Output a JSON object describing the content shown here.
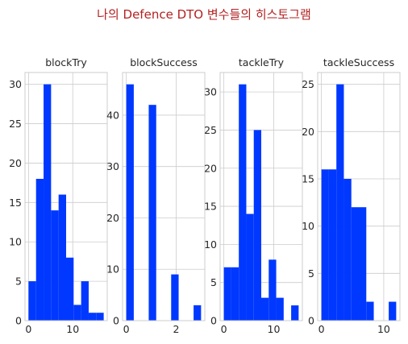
{
  "figure": {
    "title": "나의 Defence DTO 변수들의 히스토그램",
    "title_color": "#b22222",
    "bar_color": "#0038ff",
    "grid": true
  },
  "chart_data": [
    {
      "type": "bar",
      "title": "blockTry",
      "xlim": [
        -0.8,
        17.8
      ],
      "ylim": [
        0,
        31.5
      ],
      "xticks": [
        0,
        10
      ],
      "yticks": [
        0,
        5,
        10,
        15,
        20,
        25,
        30
      ],
      "bins": [
        {
          "x0": 0,
          "x1": 1.7,
          "count": 5
        },
        {
          "x0": 1.7,
          "x1": 3.4,
          "count": 18
        },
        {
          "x0": 3.4,
          "x1": 5.1,
          "count": 30
        },
        {
          "x0": 5.1,
          "x1": 6.8,
          "count": 14
        },
        {
          "x0": 6.8,
          "x1": 8.5,
          "count": 16
        },
        {
          "x0": 8.5,
          "x1": 10.2,
          "count": 8
        },
        {
          "x0": 10.2,
          "x1": 11.9,
          "count": 2
        },
        {
          "x0": 11.9,
          "x1": 13.6,
          "count": 5
        },
        {
          "x0": 13.6,
          "x1": 15.3,
          "count": 1
        },
        {
          "x0": 15.3,
          "x1": 17.0,
          "count": 1
        }
      ]
    },
    {
      "type": "bar",
      "title": "blockSuccess",
      "xlim": [
        -0.15,
        3.15
      ],
      "ylim": [
        0,
        48.3
      ],
      "xticks": [
        0,
        2
      ],
      "yticks": [
        0,
        10,
        20,
        30,
        40
      ],
      "bins": [
        {
          "x0": 0,
          "x1": 0.3,
          "count": 46
        },
        {
          "x0": 0.3,
          "x1": 0.6,
          "count": 0
        },
        {
          "x0": 0.6,
          "x1": 0.9,
          "count": 0
        },
        {
          "x0": 0.9,
          "x1": 1.2,
          "count": 42
        },
        {
          "x0": 1.2,
          "x1": 1.5,
          "count": 0
        },
        {
          "x0": 1.5,
          "x1": 1.8,
          "count": 0
        },
        {
          "x0": 1.8,
          "x1": 2.1,
          "count": 9
        },
        {
          "x0": 2.1,
          "x1": 2.4,
          "count": 0
        },
        {
          "x0": 2.4,
          "x1": 2.7,
          "count": 0
        },
        {
          "x0": 2.7,
          "x1": 3.0,
          "count": 3
        }
      ]
    },
    {
      "type": "bar",
      "title": "tackleTry",
      "xlim": [
        -0.75,
        15.75
      ],
      "ylim": [
        0,
        32.55
      ],
      "xticks": [
        0,
        10
      ],
      "yticks": [
        0,
        5,
        10,
        15,
        20,
        25,
        30
      ],
      "bins": [
        {
          "x0": 0,
          "x1": 1.5,
          "count": 7
        },
        {
          "x0": 1.5,
          "x1": 3.0,
          "count": 7
        },
        {
          "x0": 3.0,
          "x1": 4.5,
          "count": 31
        },
        {
          "x0": 4.5,
          "x1": 6.0,
          "count": 14
        },
        {
          "x0": 6.0,
          "x1": 7.5,
          "count": 25
        },
        {
          "x0": 7.5,
          "x1": 9.0,
          "count": 3
        },
        {
          "x0": 9.0,
          "x1": 10.5,
          "count": 8
        },
        {
          "x0": 10.5,
          "x1": 12.0,
          "count": 3
        },
        {
          "x0": 12.0,
          "x1": 13.5,
          "count": 0
        },
        {
          "x0": 13.5,
          "x1": 15.0,
          "count": 2
        }
      ]
    },
    {
      "type": "bar",
      "title": "tackleSuccess",
      "xlim": [
        -0.6,
        12.6
      ],
      "ylim": [
        0,
        26.25
      ],
      "xticks": [
        0,
        10
      ],
      "yticks": [
        0,
        5,
        10,
        15,
        20,
        25
      ],
      "bins": [
        {
          "x0": 0,
          "x1": 1.2,
          "count": 16
        },
        {
          "x0": 1.2,
          "x1": 2.4,
          "count": 16
        },
        {
          "x0": 2.4,
          "x1": 3.6,
          "count": 25
        },
        {
          "x0": 3.6,
          "x1": 4.8,
          "count": 15
        },
        {
          "x0": 4.8,
          "x1": 6.0,
          "count": 12
        },
        {
          "x0": 6.0,
          "x1": 7.2,
          "count": 12
        },
        {
          "x0": 7.2,
          "x1": 8.4,
          "count": 2
        },
        {
          "x0": 8.4,
          "x1": 9.6,
          "count": 0
        },
        {
          "x0": 9.6,
          "x1": 10.8,
          "count": 0
        },
        {
          "x0": 10.8,
          "x1": 12.0,
          "count": 2
        }
      ]
    }
  ]
}
